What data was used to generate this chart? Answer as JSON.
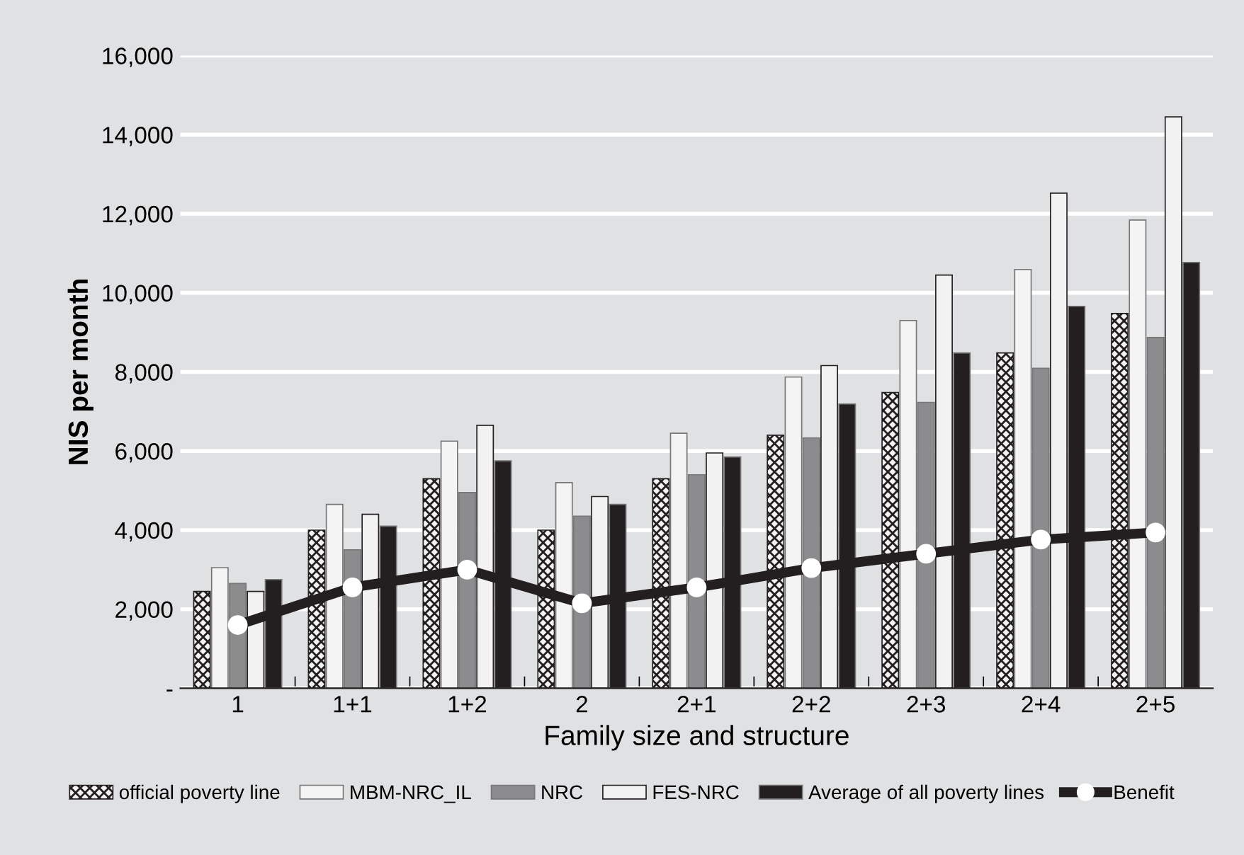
{
  "chart_data": {
    "type": "bar",
    "xlabel": "Family size and structure",
    "ylabel": "NIS per month",
    "categories": [
      "1",
      "1+1",
      "1+2",
      "2",
      "2+1",
      "2+2",
      "2+3",
      "2+4",
      "2+5"
    ],
    "series": [
      {
        "name": "official poverty line",
        "color": "#231f20",
        "values": [
          2450,
          4000,
          5300,
          4000,
          5300,
          6400,
          7480,
          8480,
          9480
        ]
      },
      {
        "name": "MBM-NRC_IL",
        "color": "#f4f4f4",
        "values": [
          3050,
          4650,
          6250,
          5200,
          6450,
          7870,
          9300,
          10590,
          11840
        ]
      },
      {
        "name": "NRC",
        "color": "#8c8c8f",
        "values": [
          2650,
          3500,
          4950,
          4350,
          5400,
          6330,
          7230,
          8090,
          8870
        ]
      },
      {
        "name": "FES-NRC",
        "color": "#231f20",
        "values": [
          2450,
          4400,
          6650,
          4850,
          5950,
          8160,
          10450,
          12520,
          14450
        ]
      },
      {
        "name": "Average of all poverty lines",
        "color": "#231f20",
        "values": [
          2750,
          4100,
          5750,
          4650,
          5850,
          7190,
          8480,
          9660,
          10770
        ]
      },
      {
        "name": "Benefit",
        "type": "line",
        "color": "#231f20",
        "marker": "circle",
        "values": [
          1600,
          2550,
          3000,
          2150,
          2550,
          3040,
          3400,
          3760,
          3940
        ]
      }
    ],
    "ylim": [
      0,
      16000
    ],
    "yticks": [
      {
        "value": 0,
        "label": "-"
      },
      {
        "value": 2000,
        "label": "2,000"
      },
      {
        "value": 4000,
        "label": "4,000"
      },
      {
        "value": 6000,
        "label": "6,000"
      },
      {
        "value": 8000,
        "label": "8,000"
      },
      {
        "value": 10000,
        "label": "10,000"
      },
      {
        "value": 12000,
        "label": "12,000"
      },
      {
        "value": 14000,
        "label": "14,000"
      },
      {
        "value": 16000,
        "label": "16,000"
      }
    ],
    "grid": "y",
    "legend": "bottom"
  }
}
